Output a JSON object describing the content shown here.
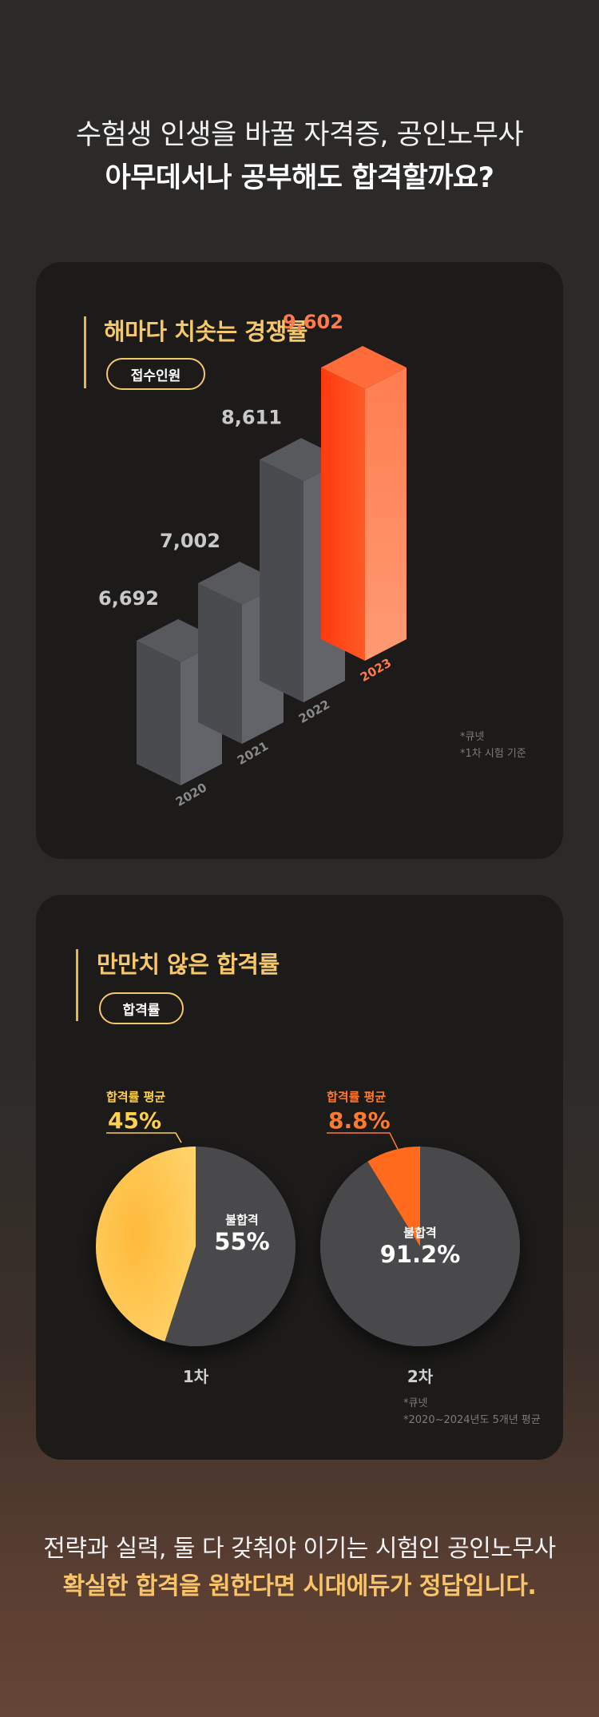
{
  "header": {
    "line1": "수험생 인생을 바꿀 자격증, 공인노무사",
    "line2": "아무데서나 공부해도 합격할까요?"
  },
  "section1": {
    "title": "해마다 치솟는 경쟁률",
    "pill": "접수인원",
    "note1": "*큐넷",
    "note2": "*1차 시험 기준"
  },
  "section2": {
    "title": "만만치 않은 합격률",
    "pill": "합격률",
    "note1": "*큐넷",
    "note2": "*2020~2024년도 5개년 평균"
  },
  "chart_data": [
    {
      "type": "bar",
      "categories": [
        "2020",
        "2021",
        "2022",
        "2023"
      ],
      "values": [
        6692,
        7002,
        8611,
        9602
      ],
      "value_labels": [
        "6,692",
        "7,002",
        "8,611",
        "9,602"
      ],
      "title": "",
      "highlight_index": 3,
      "colors": {
        "normal": "#55565a",
        "highlight": "#ff5a2a",
        "normal_label": "#c9c9c9",
        "highlight_label": "#ff7a4d"
      }
    },
    {
      "type": "pie",
      "name": "1차",
      "slices": [
        {
          "label": "합격률 평균",
          "value": 45,
          "display": "45%",
          "color": "#ffc247"
        },
        {
          "label": "불합격",
          "value": 55,
          "display": "55%",
          "color": "#48484c"
        }
      ]
    },
    {
      "type": "pie",
      "name": "2차",
      "slices": [
        {
          "label": "합격률 평균",
          "value": 8.8,
          "display": "8.8%",
          "color": "#ff6b1a"
        },
        {
          "label": "불합격",
          "value": 91.2,
          "display": "91.2%",
          "color": "#48484c"
        }
      ]
    }
  ],
  "footer": {
    "line1": "전략과 실력, 둘 다 갖춰야 이기는 시험인 공인노무사",
    "line2": "확실한 합격을 원한다면 시대에듀가 정답입니다."
  }
}
